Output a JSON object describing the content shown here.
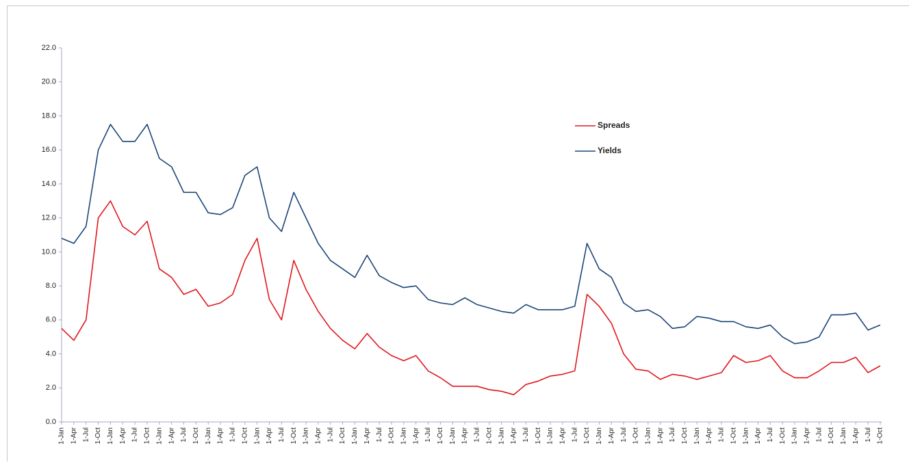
{
  "chart_data": {
    "type": "line",
    "categories": [
      "1-Jan",
      "1-Apr",
      "1-Jul",
      "1-Oct",
      "1-Jan",
      "1-Apr",
      "1-Jul",
      "1-Oct",
      "1-Jan",
      "1-Apr",
      "1-Jul",
      "1-Oct",
      "1-Jan",
      "1-Apr",
      "1-Jul",
      "1-Oct",
      "1-Jan",
      "1-Apr",
      "1-Jul",
      "1-Oct",
      "1-Jan",
      "1-Apr",
      "1-Jul",
      "1-Oct",
      "1-Jan",
      "1-Apr",
      "1-Jul",
      "1-Oct",
      "1-Jan",
      "1-Apr",
      "1-Jul",
      "1-Oct",
      "1-Jan",
      "1-Apr",
      "1-Jul",
      "1-Oct",
      "1-Jan",
      "1-Apr",
      "1-Jul",
      "1-Oct",
      "1-Jan",
      "1-Apr",
      "1-Jul",
      "1-Oct",
      "1-Jan",
      "1-Apr",
      "1-Jul",
      "1-Oct",
      "1-Jan",
      "1-Apr",
      "1-Jul",
      "1-Oct",
      "1-Jan",
      "1-Apr",
      "1-Jul",
      "1-Oct",
      "1-Jan",
      "1-Apr",
      "1-Jul",
      "1-Oct",
      "1-Jan",
      "1-Apr",
      "1-Jul",
      "1-Oct",
      "1-Jan",
      "1-Apr",
      "1-Jul",
      "1-Oct"
    ],
    "series": [
      {
        "name": "Spreads",
        "color": "#e0161c",
        "values": [
          5.5,
          4.8,
          6.0,
          12.0,
          13.0,
          11.5,
          11.0,
          11.8,
          9.0,
          8.5,
          7.5,
          7.8,
          6.8,
          7.0,
          7.5,
          9.5,
          10.8,
          7.2,
          6.0,
          9.5,
          7.8,
          6.5,
          5.5,
          4.8,
          4.3,
          5.2,
          4.4,
          3.9,
          3.6,
          3.9,
          3.0,
          2.6,
          2.1,
          2.1,
          2.1,
          1.9,
          1.8,
          1.6,
          2.2,
          2.4,
          2.7,
          2.8,
          3.0,
          7.5,
          6.8,
          5.8,
          4.0,
          3.1,
          3.0,
          2.5,
          2.8,
          2.7,
          2.5,
          2.7,
          2.9,
          3.9,
          3.5,
          3.6,
          3.9,
          3.0,
          2.6,
          2.6,
          3.0,
          3.5,
          3.5,
          3.8,
          2.9,
          3.3
        ]
      },
      {
        "name": "Yields",
        "color": "#1b4576",
        "values": [
          10.8,
          10.5,
          11.5,
          16.0,
          17.5,
          16.5,
          16.5,
          17.5,
          15.5,
          15.0,
          13.5,
          13.5,
          12.3,
          12.2,
          12.6,
          14.5,
          15.0,
          12.0,
          11.2,
          13.5,
          12.0,
          10.5,
          9.5,
          9.0,
          8.5,
          9.8,
          8.6,
          8.2,
          7.9,
          8.0,
          7.2,
          7.0,
          6.9,
          7.3,
          6.9,
          6.7,
          6.5,
          6.4,
          6.9,
          6.6,
          6.6,
          6.6,
          6.8,
          10.5,
          9.0,
          8.5,
          7.0,
          6.5,
          6.6,
          6.2,
          5.5,
          5.6,
          6.2,
          6.1,
          5.9,
          5.9,
          5.6,
          5.5,
          5.7,
          5.0,
          4.6,
          4.7,
          5.0,
          6.3,
          6.3,
          6.4,
          5.4,
          5.7
        ]
      }
    ],
    "ylim": [
      0,
      22
    ],
    "yticks": [
      {
        "value": 0,
        "label": "0.0"
      },
      {
        "value": 2,
        "label": "2.0"
      },
      {
        "value": 4,
        "label": "4.0"
      },
      {
        "value": 6,
        "label": "6.0"
      },
      {
        "value": 8,
        "label": "8.0"
      },
      {
        "value": 10,
        "label": "10.0"
      },
      {
        "value": 12,
        "label": "12.0"
      },
      {
        "value": 14,
        "label": "14.0"
      },
      {
        "value": 16,
        "label": "16.0"
      },
      {
        "value": 18,
        "label": "18.0"
      },
      {
        "value": 20,
        "label": "20.0"
      },
      {
        "value": 22,
        "label": "22.0"
      }
    ],
    "grid": false
  }
}
